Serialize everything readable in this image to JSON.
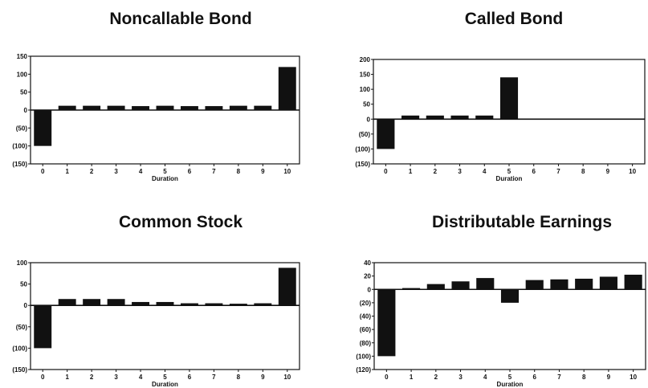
{
  "chart_data": [
    {
      "type": "bar",
      "title": "Noncallable Bond",
      "xlabel": "Duration",
      "ylabel": "",
      "categories": [
        "0",
        "1",
        "2",
        "3",
        "4",
        "5",
        "6",
        "7",
        "8",
        "9",
        "10"
      ],
      "values": [
        -100,
        12,
        12,
        12,
        11,
        12,
        11,
        11,
        12,
        12,
        120
      ],
      "ylim": [
        -150,
        150
      ],
      "yticks": [
        150,
        100,
        50,
        0,
        -50,
        -100,
        -150
      ],
      "ytick_labels": [
        "150",
        "100",
        "50",
        "0",
        "(50)",
        "(100)",
        "(150)"
      ]
    },
    {
      "type": "bar",
      "title": "Called Bond",
      "xlabel": "Duration",
      "ylabel": "",
      "categories": [
        "0",
        "1",
        "2",
        "3",
        "4",
        "5",
        "6",
        "7",
        "8",
        "9",
        "10"
      ],
      "values": [
        -100,
        12,
        12,
        12,
        12,
        140,
        0,
        0,
        0,
        0,
        0
      ],
      "ylim": [
        -150,
        200
      ],
      "yticks": [
        200,
        150,
        100,
        50,
        0,
        -50,
        -100,
        -150
      ],
      "ytick_labels": [
        "200",
        "150",
        "100",
        "50",
        "0",
        "(50)",
        "(100)",
        "(150)"
      ]
    },
    {
      "type": "bar",
      "title": "Common Stock",
      "xlabel": "Duration",
      "ylabel": "",
      "categories": [
        "0",
        "1",
        "2",
        "3",
        "4",
        "5",
        "6",
        "7",
        "8",
        "9",
        "10"
      ],
      "values": [
        -100,
        15,
        15,
        15,
        8,
        8,
        5,
        5,
        4,
        5,
        88
      ],
      "ylim": [
        -150,
        100
      ],
      "yticks": [
        100,
        50,
        0,
        -50,
        -100,
        -150
      ],
      "ytick_labels": [
        "100",
        "50",
        "0",
        "(50)",
        "(100)",
        "(150)"
      ]
    },
    {
      "type": "bar",
      "title": "Distributable Earnings",
      "xlabel": "Duration",
      "ylabel": "",
      "categories": [
        "0",
        "1",
        "2",
        "3",
        "4",
        "5",
        "6",
        "7",
        "8",
        "9",
        "10"
      ],
      "values": [
        -100,
        2,
        8,
        12,
        17,
        -20,
        14,
        15,
        16,
        19,
        22
      ],
      "ylim": [
        -120,
        40
      ],
      "yticks": [
        40,
        20,
        0,
        -20,
        -40,
        -60,
        -80,
        -100,
        -120
      ],
      "ytick_labels": [
        "40",
        "20",
        "0",
        "(20)",
        "(40)",
        "(60)",
        "(80)",
        "(100)",
        "(120)"
      ]
    }
  ]
}
